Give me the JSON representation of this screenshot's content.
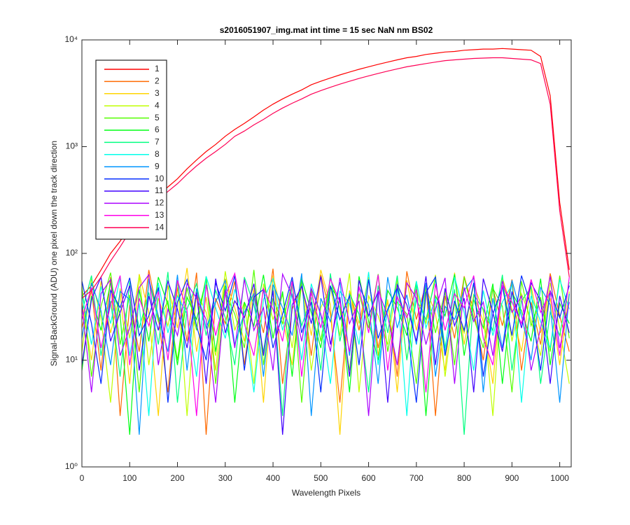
{
  "chart_data": {
    "type": "line",
    "title": "s2016051907_img.mat int time = 15 sec  NaN nm BS02",
    "x_label": "Wavelength Pixels",
    "y_label": "Signal-BackGround (ADU) one pixel down the track direction",
    "x": [
      0,
      20,
      40,
      60,
      80,
      100,
      120,
      140,
      160,
      180,
      200,
      220,
      240,
      260,
      280,
      300,
      320,
      340,
      360,
      380,
      400,
      420,
      440,
      460,
      480,
      500,
      520,
      540,
      560,
      580,
      600,
      620,
      640,
      660,
      680,
      700,
      720,
      740,
      760,
      780,
      800,
      820,
      840,
      860,
      880,
      900,
      920,
      940,
      960,
      980,
      1000,
      1020
    ],
    "xlim": [
      0,
      1024
    ],
    "xticks": [
      0,
      100,
      200,
      300,
      400,
      500,
      600,
      700,
      800,
      900,
      1000
    ],
    "ylim": [
      1,
      10000
    ],
    "ylog": true,
    "yticks": [
      {
        "value": 1,
        "label": "10⁰"
      },
      {
        "value": 10,
        "label": "10¹"
      },
      {
        "value": 100,
        "label": "10²"
      },
      {
        "value": 1000,
        "label": "10³"
      },
      {
        "value": 10000,
        "label": "10⁴"
      }
    ],
    "grid": false,
    "legend": "northwest",
    "series": [
      {
        "name": "1",
        "color": "#ff0000",
        "values": [
          40,
          50,
          70,
          100,
          130,
          180,
          250,
          300,
          350,
          420,
          500,
          620,
          750,
          900,
          1050,
          1250,
          1450,
          1650,
          1900,
          2200,
          2500,
          2800,
          3100,
          3400,
          3800,
          4100,
          4400,
          4700,
          5000,
          5300,
          5600,
          5900,
          6200,
          6500,
          6800,
          7000,
          7300,
          7500,
          7700,
          7800,
          8000,
          8100,
          8200,
          8200,
          8300,
          8200,
          8100,
          8000,
          7000,
          3000,
          300,
          70
        ]
      },
      {
        "name": "2",
        "color": "#ff6a00",
        "values": [
          20,
          45,
          8,
          60,
          3,
          33,
          12,
          70,
          25,
          5,
          48,
          15,
          66,
          2,
          38,
          22,
          55,
          9,
          41,
          18,
          72,
          6,
          30,
          50,
          11,
          63,
          27,
          4,
          44,
          19,
          58,
          13,
          36,
          7,
          68,
          24,
          52,
          3,
          40,
          16,
          61,
          29,
          10,
          47,
          21,
          57,
          8,
          35,
          14,
          65,
          26,
          12
        ]
      },
      {
        "name": "3",
        "color": "#ffd400",
        "values": [
          35,
          10,
          55,
          18,
          42,
          6,
          64,
          28,
          3,
          50,
          20,
          73,
          12,
          39,
          8,
          58,
          31,
          15,
          47,
          4,
          62,
          25,
          9,
          53,
          17,
          70,
          33,
          2,
          45,
          22,
          60,
          11,
          37,
          5,
          56,
          19,
          48,
          27,
          8,
          66,
          14,
          41,
          23,
          6,
          59,
          30,
          12,
          50,
          18,
          38,
          9,
          44
        ]
      },
      {
        "name": "4",
        "color": "#c0ff00",
        "values": [
          12,
          58,
          25,
          4,
          47,
          16,
          62,
          9,
          38,
          21,
          55,
          3,
          44,
          28,
          11,
          68,
          19,
          35,
          6,
          52,
          24,
          41,
          13,
          60,
          8,
          31,
          49,
          17,
          65,
          5,
          40,
          26,
          14,
          57,
          10,
          46,
          22,
          63,
          7,
          34,
          18,
          51,
          29,
          3,
          59,
          15,
          42,
          24,
          11,
          53,
          20,
          6
        ]
      },
      {
        "name": "5",
        "color": "#55ff00",
        "values": [
          50,
          7,
          32,
          66,
          14,
          41,
          5,
          57,
          23,
          36,
          10,
          48,
          19,
          61,
          6,
          43,
          27,
          13,
          70,
          9,
          38,
          22,
          54,
          4,
          46,
          15,
          59,
          30,
          8,
          42,
          20,
          64,
          12,
          35,
          27,
          6,
          50,
          18,
          44,
          9,
          60,
          25,
          13,
          47,
          32,
          5,
          55,
          21,
          39,
          12,
          62,
          16
        ]
      },
      {
        "name": "6",
        "color": "#00ff15",
        "values": [
          8,
          40,
          19,
          53,
          27,
          2,
          46,
          15,
          60,
          33,
          9,
          39,
          24,
          57,
          12,
          50,
          4,
          35,
          21,
          63,
          16,
          44,
          7,
          58,
          28,
          13,
          49,
          36,
          5,
          61,
          23,
          10,
          45,
          31,
          17,
          55,
          3,
          40,
          26,
          64,
          11,
          37,
          20,
          52,
          6,
          43,
          29,
          15,
          58,
          9,
          34,
          22
        ]
      },
      {
        "name": "7",
        "color": "#00ff80",
        "values": [
          28,
          62,
          11,
          36,
          7,
          55,
          20,
          43,
          14,
          67,
          4,
          30,
          52,
          17,
          45,
          25,
          9,
          60,
          33,
          12,
          48,
          3,
          56,
          21,
          39,
          8,
          65,
          15,
          42,
          27,
          5,
          50,
          18,
          62,
          10,
          37,
          24,
          57,
          13,
          46,
          2,
          41,
          30,
          19,
          63,
          8,
          36,
          48,
          6,
          28,
          17,
          54
        ]
      },
      {
        "name": "8",
        "color": "#00ffea",
        "values": [
          41,
          14,
          49,
          22,
          59,
          11,
          34,
          3,
          53,
          18,
          40,
          27,
          7,
          61,
          31,
          16,
          46,
          24,
          5,
          37,
          58,
          19,
          42,
          10,
          52,
          26,
          6,
          44,
          34,
          14,
          67,
          9,
          29,
          47,
          3,
          55,
          20,
          38,
          12,
          60,
          28,
          8,
          45,
          17,
          35,
          51,
          4,
          40,
          23,
          13,
          57,
          30
        ]
      },
      {
        "name": "9",
        "color": "#0095ff",
        "values": [
          16,
          53,
          29,
          9,
          44,
          37,
          2,
          58,
          26,
          12,
          63,
          8,
          47,
          20,
          35,
          56,
          14,
          28,
          42,
          7,
          51,
          31,
          17,
          65,
          3,
          38,
          23,
          54,
          11,
          48,
          33,
          6,
          60,
          20,
          41,
          14,
          53,
          7,
          32,
          24,
          45,
          59,
          5,
          38,
          13,
          56,
          26,
          10,
          48,
          33,
          4,
          42
        ]
      },
      {
        "name": "10",
        "color": "#002bff",
        "values": [
          55,
          22,
          6,
          45,
          31,
          59,
          17,
          26,
          48,
          4,
          35,
          57,
          21,
          10,
          53,
          29,
          62,
          8,
          39,
          46,
          13,
          27,
          60,
          18,
          35,
          5,
          50,
          24,
          40,
          9,
          57,
          16,
          30,
          48,
          21,
          4,
          43,
          60,
          11,
          36,
          19,
          53,
          7,
          27,
          49,
          17,
          62,
          32,
          8,
          45,
          25,
          50
        ]
      },
      {
        "name": "11",
        "color": "#4000ff",
        "values": [
          9,
          37,
          60,
          15,
          28,
          50,
          8,
          40,
          19,
          55,
          30,
          13,
          43,
          6,
          58,
          18,
          36,
          25,
          52,
          11,
          45,
          2,
          33,
          49,
          22,
          61,
          14,
          39,
          7,
          56,
          26,
          44,
          4,
          51,
          33,
          15,
          61,
          9,
          47,
          21,
          38,
          5,
          58,
          28,
          12,
          44,
          20,
          53,
          36,
          6,
          40,
          18
        ]
      },
      {
        "name": "12",
        "color": "#aa00ff",
        "values": [
          33,
          5,
          42,
          57,
          11,
          20,
          48,
          63,
          9,
          30,
          17,
          52,
          38,
          24,
          4,
          46,
          13,
          57,
          19,
          31,
          8,
          64,
          40,
          15,
          47,
          27,
          12,
          59,
          22,
          36,
          3,
          45,
          26,
          9,
          53,
          38,
          14,
          30,
          59,
          6,
          48,
          23,
          35,
          11,
          55,
          28,
          40,
          8,
          20,
          61,
          13,
          35
        ]
      },
      {
        "name": "13",
        "color": "#ff00ea",
        "values": [
          24,
          48,
          13,
          33,
          62,
          9,
          38,
          21,
          44,
          10,
          56,
          29,
          3,
          51,
          17,
          40,
          65,
          22,
          11,
          47,
          30,
          15,
          55,
          7,
          43,
          20,
          58,
          35,
          12,
          49,
          18,
          63,
          8,
          39,
          25,
          46,
          5,
          52,
          19,
          42,
          31,
          62,
          16,
          9,
          50,
          35,
          22,
          57,
          28,
          44,
          11,
          60
        ]
      },
      {
        "name": "14",
        "color": "#ff0055",
        "values": [
          38,
          45,
          60,
          85,
          115,
          160,
          220,
          270,
          320,
          380,
          450,
          550,
          660,
          780,
          900,
          1050,
          1250,
          1400,
          1600,
          1800,
          2050,
          2300,
          2550,
          2800,
          3100,
          3350,
          3600,
          3850,
          4100,
          4350,
          4600,
          4850,
          5100,
          5350,
          5600,
          5800,
          6000,
          6200,
          6400,
          6500,
          6600,
          6700,
          6750,
          6800,
          6800,
          6700,
          6600,
          6500,
          6000,
          2500,
          250,
          60
        ]
      }
    ]
  }
}
